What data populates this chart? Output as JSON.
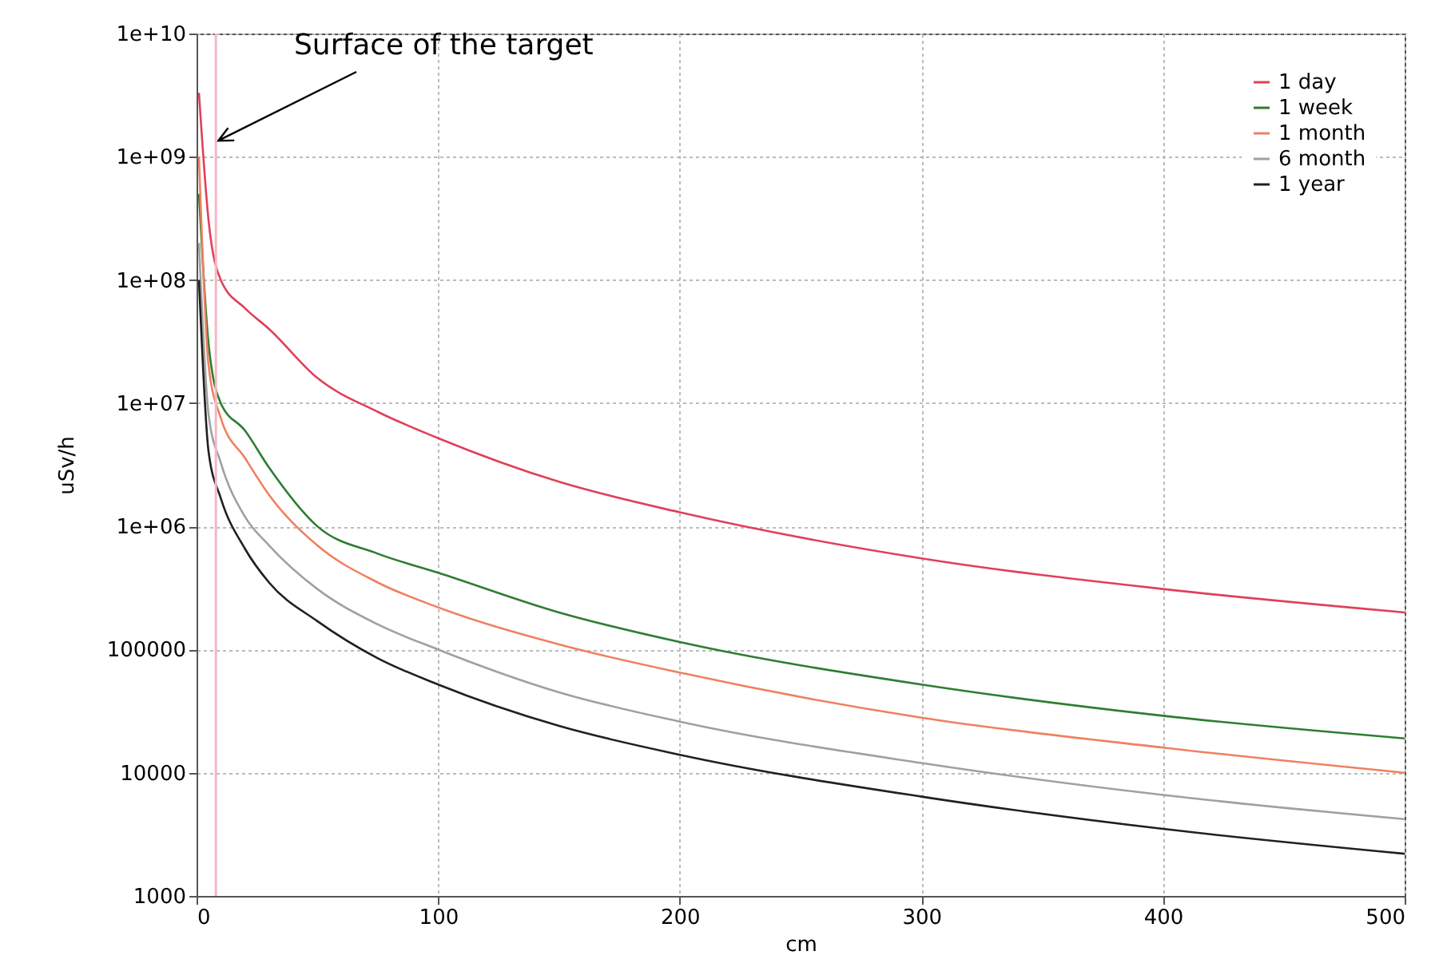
{
  "chart_data": {
    "type": "line",
    "xlabel": "cm",
    "ylabel": "uSv/h",
    "x": [
      1,
      5,
      10,
      20,
      30,
      50,
      75,
      100,
      150,
      200,
      300,
      400,
      500
    ],
    "series": [
      {
        "name": "1 day",
        "color": "#e0405a",
        "values": [
          3300000000.0,
          300000000.0,
          100000000.0,
          59000000.0,
          40000000.0,
          16000000.0,
          8500000.0,
          5200000.0,
          2300000.0,
          1300000.0,
          550000.0,
          310000.0,
          200000.0
        ]
      },
      {
        "name": "1 week",
        "color": "#2e7d32",
        "values": [
          500000000.0,
          30000000.0,
          10000000.0,
          6000000.0,
          3000000.0,
          1000000.0,
          600000.0,
          420000.0,
          200000.0,
          115000.0,
          52000.0,
          29000.0,
          19000.0
        ]
      },
      {
        "name": "1 month",
        "color": "#f08060",
        "values": [
          1000000000.0,
          20000000.0,
          7600000.0,
          3600000.0,
          1800000.0,
          700000.0,
          350000.0,
          220000.0,
          110000.0,
          65000.0,
          28000.0,
          16000.0,
          10000.0
        ]
      },
      {
        "name": "6 month",
        "color": "#a0a0a0",
        "values": [
          200000000.0,
          8000000.0,
          3300000.0,
          1200000.0,
          700000.0,
          310000.0,
          160000.0,
          100000.0,
          45000.0,
          26000.0,
          12000.0,
          6600.0,
          4200.0
        ]
      },
      {
        "name": "1 year",
        "color": "#202020",
        "values": [
          100000000.0,
          4000000.0,
          1700000.0,
          660000.0,
          350000.0,
          170000.0,
          85000.0,
          52000.0,
          24000.0,
          14000.0,
          6400.0,
          3500.0,
          2200.0
        ]
      }
    ],
    "log": true,
    "xlim": [
      0,
      500
    ],
    "xticks": [
      0,
      100,
      200,
      300,
      400,
      500
    ],
    "ylim": [
      1000,
      10000000000.0
    ],
    "yticks": [
      {
        "value": 1000,
        "label": "1000"
      },
      {
        "value": 10000,
        "label": "10000"
      },
      {
        "value": 100000,
        "label": "100000"
      },
      {
        "value": 1000000.0,
        "label": "1e+06"
      },
      {
        "value": 10000000.0,
        "label": "1e+07"
      },
      {
        "value": 100000000.0,
        "label": "1e+08"
      },
      {
        "value": 1000000000.0,
        "label": "1e+09"
      },
      {
        "value": 10000000000.0,
        "label": "1e+10"
      }
    ],
    "ref_lines": [
      {
        "axis": "x",
        "value": 8,
        "color": "#f4b8c4"
      }
    ],
    "annotations": [
      {
        "text": "Surface of the target",
        "x": 9,
        "y": 1350000000.0
      }
    ],
    "grid": true,
    "legend": "top right",
    "marker": "none"
  }
}
